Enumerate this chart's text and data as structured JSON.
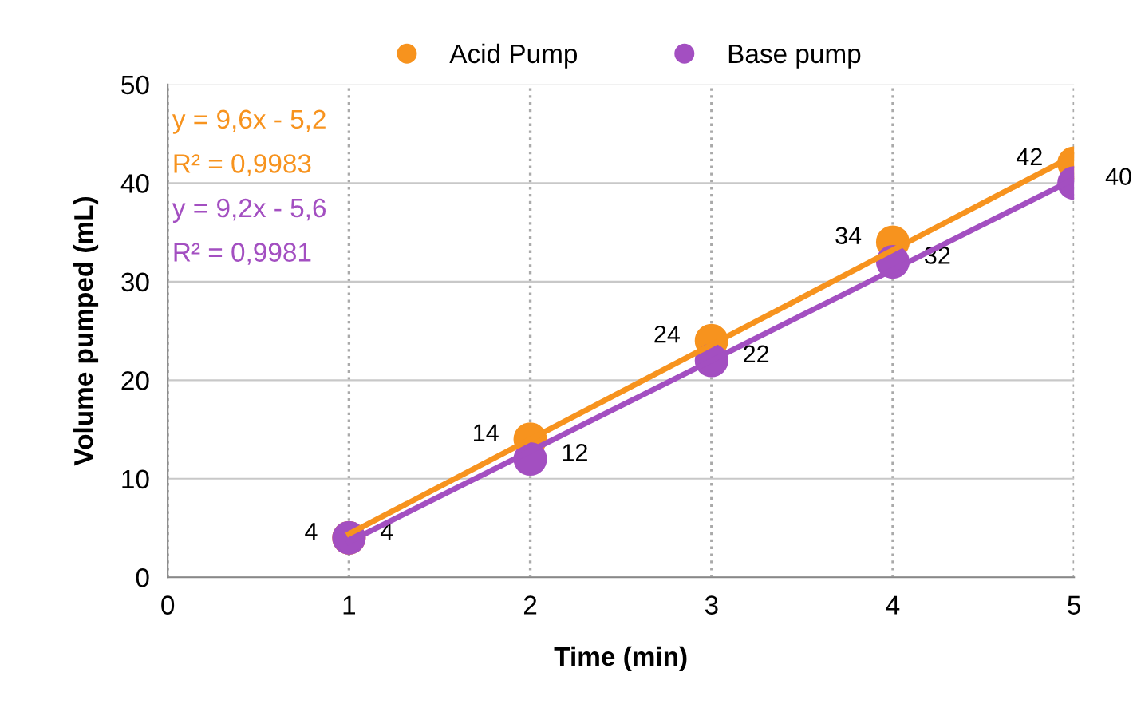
{
  "chart_data": {
    "type": "scatter",
    "xlabel": "Time (min)",
    "ylabel": "Volume pumped (mL)",
    "x": [
      1,
      2,
      3,
      4,
      5
    ],
    "series": [
      {
        "name": "Acid Pump",
        "color": "#f7931e",
        "values": [
          4,
          14,
          24,
          34,
          42
        ],
        "value_labels": [
          "4",
          "14",
          "24",
          "34",
          "42"
        ]
      },
      {
        "name": "Base pump",
        "color": "#a34fc1",
        "values": [
          4,
          12,
          22,
          32,
          40
        ],
        "value_labels": [
          "4",
          "12",
          "22",
          "32",
          "40"
        ]
      },
      {
        "type": "line",
        "color": "#f7931e",
        "marker": "none",
        "values": [
          4.4,
          14,
          23.6,
          33.2,
          42.8
        ]
      },
      {
        "type": "line",
        "color": "#a34fc1",
        "marker": "none",
        "values": [
          3.6,
          12.8,
          22,
          31.2,
          40.4
        ]
      }
    ],
    "annotations": [
      "y = 9,6x - 5,2",
      "R² = 0,9983",
      "y = 9,2x - 5,6",
      "R² = 0,9981"
    ],
    "marker": "circle",
    "grid": true,
    "legend": "top",
    "xlim": [
      0,
      5
    ],
    "ylim": [
      0,
      50
    ],
    "xticks": [
      0,
      1,
      2,
      3,
      4,
      5
    ],
    "yticks": [
      0,
      10,
      20,
      30,
      40,
      50
    ]
  }
}
